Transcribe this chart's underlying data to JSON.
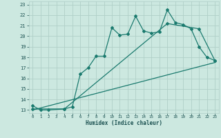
{
  "xlabel": "Humidex (Indice chaleur)",
  "bg_color": "#cce8e0",
  "grid_color": "#b0cfc8",
  "line_color": "#1a7a6e",
  "xlim": [
    -0.5,
    23.5
  ],
  "ylim": [
    12.7,
    23.3
  ],
  "xticks": [
    0,
    1,
    2,
    3,
    4,
    5,
    6,
    7,
    8,
    9,
    10,
    11,
    12,
    13,
    14,
    15,
    16,
    17,
    18,
    19,
    20,
    21,
    22,
    23
  ],
  "yticks": [
    13,
    14,
    15,
    16,
    17,
    18,
    19,
    20,
    21,
    22,
    23
  ],
  "line1_x": [
    0,
    1,
    2,
    4,
    5,
    6,
    7,
    8,
    9,
    10,
    11,
    12,
    13,
    14,
    15,
    16,
    17,
    18,
    19,
    20,
    21,
    22,
    23
  ],
  "line1_y": [
    13.4,
    13.0,
    13.0,
    13.1,
    13.3,
    16.4,
    17.0,
    18.1,
    18.1,
    20.8,
    20.1,
    20.2,
    21.9,
    20.5,
    20.3,
    20.4,
    22.5,
    21.3,
    21.1,
    20.7,
    19.0,
    18.0,
    17.7
  ],
  "line2_x": [
    0,
    4,
    17,
    21,
    23
  ],
  "line2_y": [
    13.1,
    13.1,
    21.2,
    20.7,
    17.7
  ],
  "line3_x": [
    0,
    23
  ],
  "line3_y": [
    13.0,
    17.5
  ]
}
